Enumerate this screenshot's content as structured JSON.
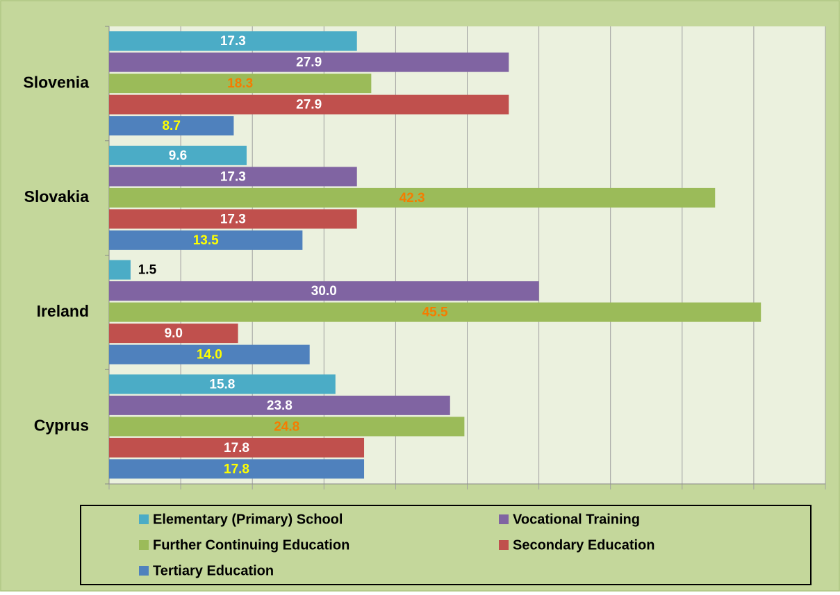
{
  "chart_data": {
    "type": "barh",
    "categories": [
      "Slovenia",
      "Slovakia",
      "Ireland",
      "Cyprus"
    ],
    "series": [
      {
        "name": "Elementary (Primary) School",
        "color": "#4bacc6",
        "label_color": "#ffffff",
        "values": [
          17.3,
          9.6,
          1.5,
          15.8
        ]
      },
      {
        "name": "Vocational Training",
        "color": "#8064a2",
        "label_color": "#ffffff",
        "values": [
          27.9,
          17.3,
          30.0,
          23.8
        ],
        "value_labels": [
          "27.9",
          "17.3",
          "30.0",
          "23.8"
        ]
      },
      {
        "name": "Further Continuing Education",
        "color": "#9bbb59",
        "label_color": "#f57c00",
        "values": [
          18.3,
          42.3,
          45.5,
          24.8
        ]
      },
      {
        "name": "Secondary Education",
        "color": "#c0504d",
        "label_color": "#ffffff",
        "values": [
          27.9,
          17.3,
          9.0,
          17.8
        ],
        "value_labels": [
          "27.9",
          "17.3",
          "9.0",
          "17.8"
        ]
      },
      {
        "name": "Tertiary Education",
        "color": "#4f81bd",
        "label_color": "#ffff00",
        "values": [
          8.7,
          13.5,
          14.0,
          17.8
        ],
        "value_labels": [
          "8.7",
          "13.5",
          "14.0",
          "17.8"
        ]
      }
    ],
    "xlim": [
      0,
      50
    ],
    "xticks": [
      0,
      5,
      10,
      15,
      20,
      25,
      30,
      35,
      40,
      45,
      50
    ],
    "grid": true,
    "legend": "bottom"
  }
}
